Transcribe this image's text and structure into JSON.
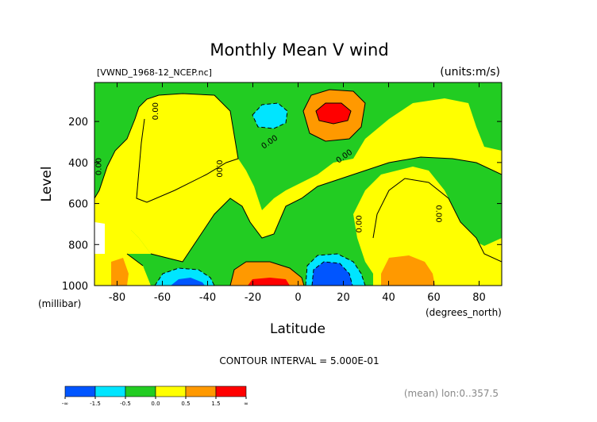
{
  "chart_data": {
    "type": "contour",
    "title": "Monthly Mean V wind",
    "file_label": "[VWND_1968-12_NCEP.nc]",
    "units_label": "(units:m/s)",
    "xlabel": "Latitude",
    "xunits": "(degrees_north)",
    "ylabel": "Level",
    "yunits": "(millibar)",
    "xlim": [
      -90,
      90
    ],
    "ylim": [
      1000,
      10
    ],
    "x_ticks": [
      -80,
      -60,
      -40,
      -20,
      0,
      20,
      40,
      60,
      80
    ],
    "x_tick_labels": [
      "-80",
      "-60",
      "-40",
      "-20",
      "0",
      "20",
      "40",
      "60",
      "80"
    ],
    "y_ticks": [
      200,
      400,
      600,
      800,
      1000
    ],
    "y_tick_labels": [
      "200",
      "400",
      "600",
      "800",
      "1000"
    ],
    "contour_interval_text": "CONTOUR INTERVAL = 5.000E-01",
    "footer_text": "(mean) lon:0..357.5",
    "contour_labels": [
      {
        "text": "0.00",
        "x": -87,
        "y": 420,
        "rotate": -90
      },
      {
        "text": "0.00",
        "x": -62,
        "y": 150,
        "rotate": -90
      },
      {
        "text": "0.00",
        "x": -36,
        "y": 430,
        "rotate": 90
      },
      {
        "text": "0.00",
        "x": -12,
        "y": 310,
        "rotate": -35
      },
      {
        "text": "0.00",
        "x": 21,
        "y": 380,
        "rotate": -35
      },
      {
        "text": "0.00",
        "x": 28,
        "y": 700,
        "rotate": -90
      },
      {
        "text": "0.00",
        "x": 61,
        "y": 650,
        "rotate": 90
      }
    ],
    "legend": {
      "colors": [
        "#0055ff",
        "#00e5ff",
        "#22cc22",
        "#ffff00",
        "#ff9900",
        "#ff0000"
      ],
      "tick_labels": [
        "-∞",
        "-1.5",
        "-0.5",
        "0.0",
        "0.5",
        "1.5",
        "∞"
      ]
    },
    "regions": [
      {
        "level": "neutral_yellow",
        "color": "#ffff00"
      },
      {
        "level": "near_zero_green",
        "color": "#22cc22"
      },
      {
        "level": "weak_positive_orange",
        "color": "#ff9900"
      },
      {
        "level": "strong_positive_red",
        "color": "#ff0000"
      },
      {
        "level": "weak_negative_cyan",
        "color": "#00e5ff"
      },
      {
        "level": "strong_negative_blue",
        "color": "#0055ff"
      }
    ]
  }
}
